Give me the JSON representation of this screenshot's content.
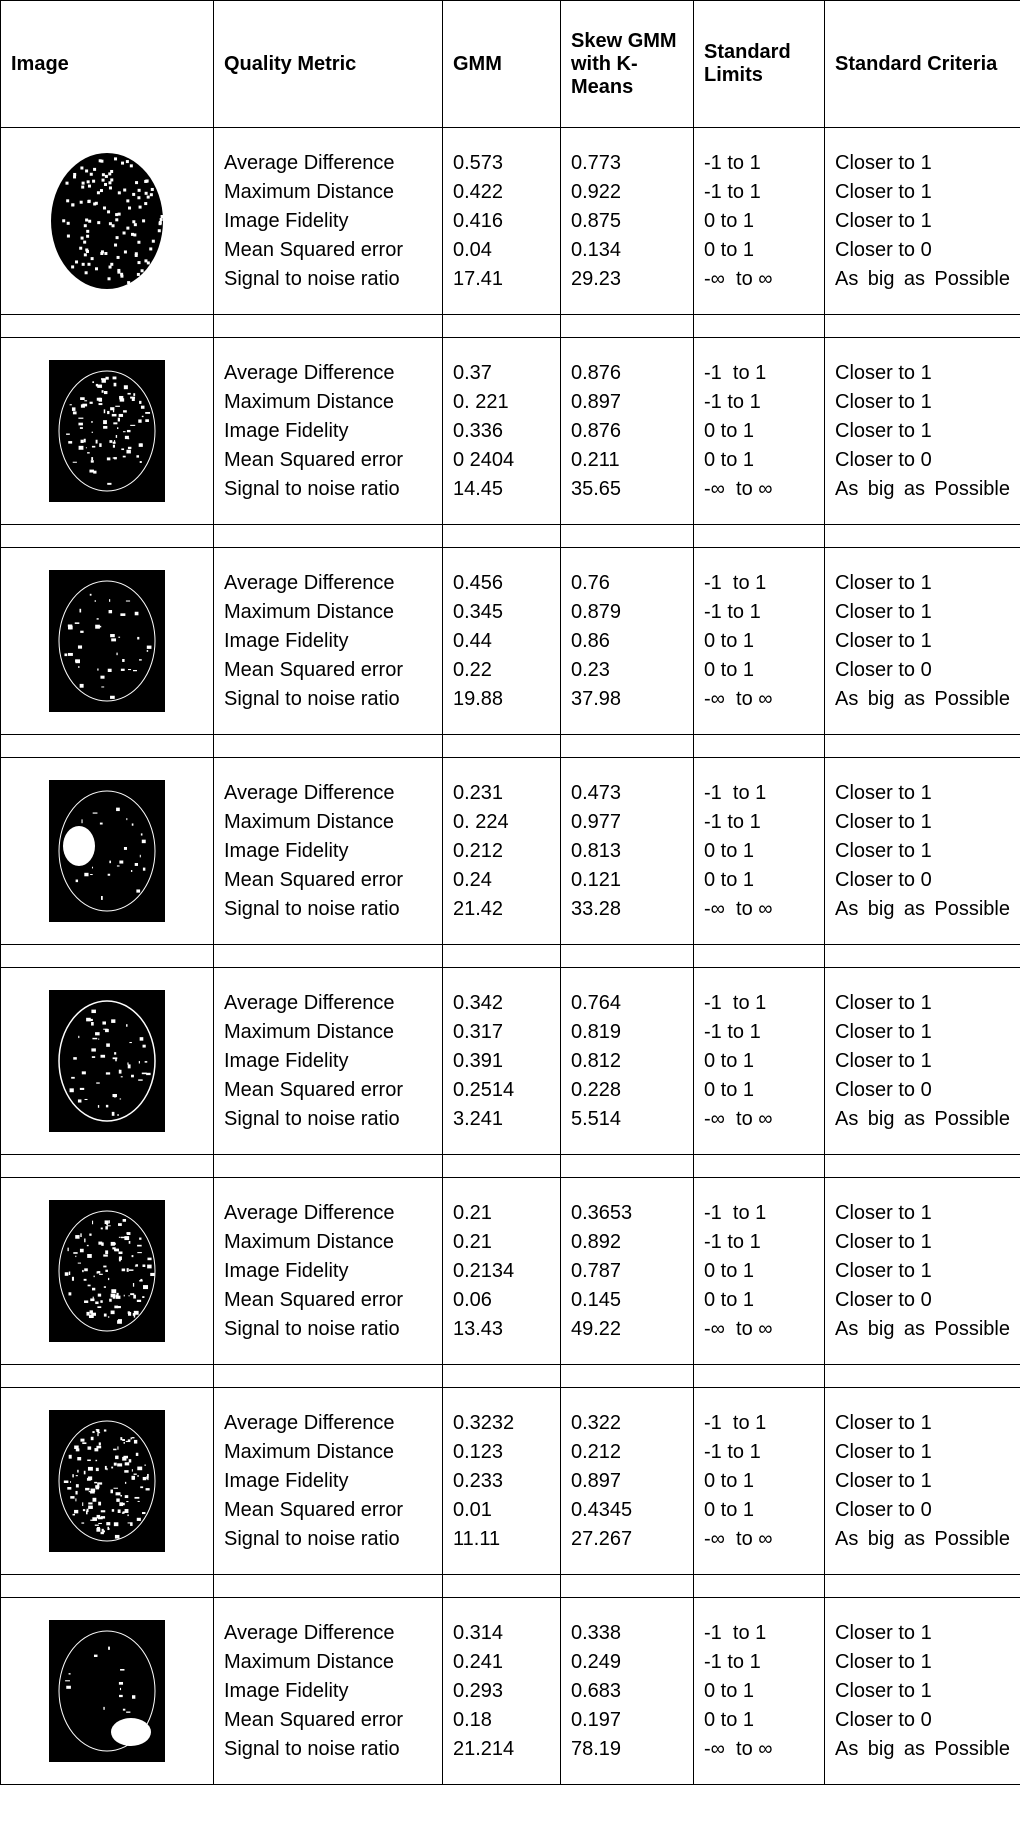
{
  "table": {
    "header": [
      "Image",
      "Quality Metric",
      "GMM",
      "Skew GMM with K-Means",
      "Standard Limits",
      "Standard Criteria"
    ],
    "groups": [
      {
        "metrics": [
          "Average Difference",
          "Maximum Distance",
          "Image Fidelity",
          "Mean Squared error",
          "Signal to noise ratio"
        ],
        "gmm": [
          "0.573",
          "0.422",
          "0.416",
          "0.04",
          "17.41"
        ],
        "skew": [
          "0.773",
          "0.922",
          "0.875",
          "0.134",
          "29.23"
        ],
        "limits": [
          "-1 to 1",
          "-1 to 1",
          "0 to 1",
          "0 to 1",
          "-∞  to ∞"
        ],
        "criteria": [
          "Closer to 1",
          "Closer to 1",
          "Closer to 1",
          "Closer to 0",
          "As big as Possible"
        ]
      },
      {
        "metrics": [
          "Average Difference",
          "Maximum Distance",
          "Image Fidelity",
          "Mean Squared error",
          "Signal to noise ratio"
        ],
        "gmm": [
          "0.37",
          "0. 221",
          "0.336",
          "0 2404",
          "14.45"
        ],
        "skew": [
          "0.876",
          "0.897",
          "0.876",
          "0.211",
          "35.65"
        ],
        "limits": [
          "-1  to 1",
          "-1 to 1",
          "0 to 1",
          "0 to 1",
          "-∞  to ∞"
        ],
        "criteria": [
          "Closer to 1",
          "Closer to 1",
          "Closer to 1",
          "Closer to 0",
          "As big as Possible"
        ]
      },
      {
        "metrics": [
          "Average Difference",
          "Maximum Distance",
          "Image Fidelity",
          "Mean Squared error",
          "Signal to noise ratio"
        ],
        "gmm": [
          "0.456",
          "0.345",
          "0.44",
          "0.22",
          "19.88"
        ],
        "skew": [
          "0.76",
          "0.879",
          "0.86",
          "0.23",
          "37.98"
        ],
        "limits": [
          "-1  to 1",
          "-1 to 1",
          "0 to 1",
          "0 to 1",
          "-∞  to ∞"
        ],
        "criteria": [
          "Closer to 1",
          "Closer to 1",
          "Closer to 1",
          "Closer to 0",
          "As big as Possible"
        ]
      },
      {
        "metrics": [
          "Average Difference",
          "Maximum Distance",
          "Image Fidelity",
          "Mean Squared error",
          "Signal to noise ratio"
        ],
        "gmm": [
          "0.231",
          "0. 224",
          "0.212",
          "0.24",
          "21.42"
        ],
        "skew": [
          "0.473",
          "0.977",
          "0.813",
          "0.121",
          "33.28"
        ],
        "limits": [
          "-1  to 1",
          "-1 to 1",
          "0 to 1",
          "0 to 1",
          "-∞  to ∞"
        ],
        "criteria": [
          "Closer to 1",
          "Closer to 1",
          "Closer to 1",
          "Closer to 0",
          "As big as Possible"
        ]
      },
      {
        "metrics": [
          "Average Difference",
          "Maximum Distance",
          "Image Fidelity",
          "Mean Squared error",
          "Signal to noise ratio"
        ],
        "gmm": [
          "0.342",
          "0.317",
          "0.391",
          "0.2514",
          "3.241"
        ],
        "skew": [
          "0.764",
          "0.819",
          "0.812",
          "0.228",
          "5.514"
        ],
        "limits": [
          "-1  to 1",
          "-1 to 1",
          "0 to 1",
          "0 to 1",
          "-∞  to ∞"
        ],
        "criteria": [
          "Closer to 1",
          "Closer to 1",
          "Closer to 1",
          "Closer to 0",
          "As big as Possible"
        ]
      },
      {
        "metrics": [
          "Average Difference",
          "Maximum Distance",
          "Image Fidelity",
          "Mean Squared error",
          "Signal to noise ratio"
        ],
        "gmm": [
          "0.21",
          "0.21",
          "0.2134",
          "0.06",
          "13.43"
        ],
        "skew": [
          "0.3653",
          "0.892",
          "0.787",
          "0.145",
          "49.22"
        ],
        "limits": [
          "-1  to 1",
          "-1 to 1",
          "0 to 1",
          "0 to 1",
          "-∞  to ∞"
        ],
        "criteria": [
          "Closer to 1",
          "Closer to 1",
          "Closer to 1",
          "Closer to 0",
          "As big as Possible"
        ]
      },
      {
        "metrics": [
          "Average Difference",
          "Maximum Distance",
          "Image Fidelity",
          "Mean Squared error",
          "Signal to noise ratio"
        ],
        "gmm": [
          "0.3232",
          "0.123",
          "0.233",
          "0.01",
          "11.11"
        ],
        "skew": [
          "0.322",
          "0.212",
          "0.897",
          "0.4345",
          "27.267"
        ],
        "limits": [
          "-1  to 1",
          "-1 to 1",
          "0 to 1",
          "0 to 1",
          "-∞  to ∞"
        ],
        "criteria": [
          "Closer to 1",
          "Closer to 1",
          "Closer to 1",
          "Closer to 0",
          "As big as Possible"
        ]
      },
      {
        "metrics": [
          "Average Difference",
          "Maximum Distance",
          "Image Fidelity",
          "Mean Squared error",
          "Signal to noise ratio"
        ],
        "gmm": [
          "0.314",
          "0.241",
          "0.293",
          "0.18",
          "21.214"
        ],
        "skew": [
          "0.338",
          "0.249",
          "0.683",
          "0.197",
          "78.19"
        ],
        "limits": [
          "-1  to 1",
          "-1 to 1",
          "0 to 1",
          "0 to 1",
          "-∞  to ∞"
        ],
        "criteria": [
          "Closer to 1",
          "Closer to 1",
          "Closer to 1",
          "Closer to 0",
          "As big as Possible"
        ]
      }
    ]
  }
}
